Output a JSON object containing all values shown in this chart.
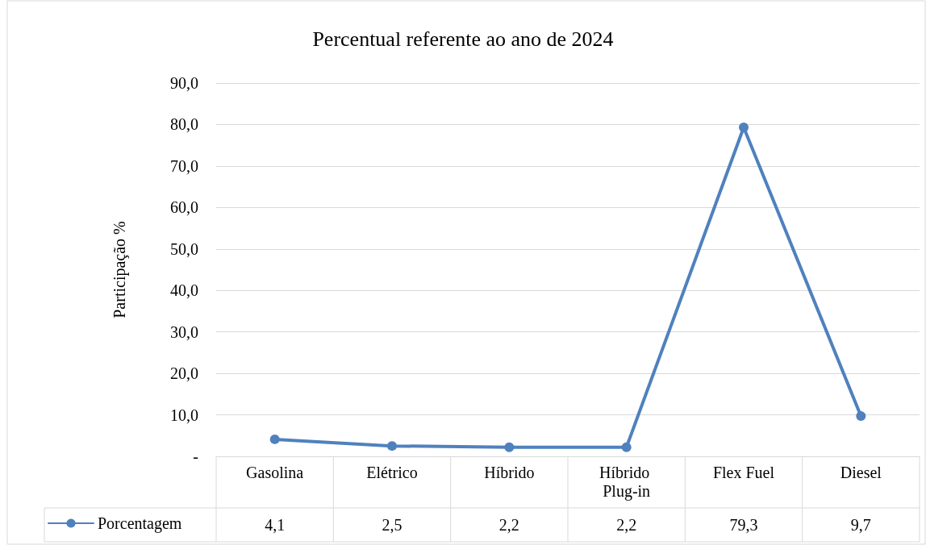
{
  "chart_data": {
    "type": "line",
    "title": "Percentual referente ao ano de 2024",
    "ylabel": "Participação %",
    "categories": [
      "Gasolina",
      "Elétrico",
      "Híbrido",
      "Híbrido Plug-in",
      "Flex Fuel",
      "Diesel"
    ],
    "series": [
      {
        "name": "Porcentagem",
        "color": "#4f81bd",
        "values": [
          4.1,
          2.5,
          2.2,
          2.2,
          79.3,
          9.7
        ],
        "value_labels": [
          "4,1",
          "2,5",
          "2,2",
          "2,2",
          "79,3",
          "9,7"
        ]
      }
    ],
    "ylim": [
      0,
      90
    ],
    "yticks": [
      {
        "value": 0,
        "label": "-"
      },
      {
        "value": 10,
        "label": "10,0"
      },
      {
        "value": 20,
        "label": "20,0"
      },
      {
        "value": 30,
        "label": "30,0"
      },
      {
        "value": 40,
        "label": "40,0"
      },
      {
        "value": 50,
        "label": "50,0"
      },
      {
        "value": 60,
        "label": "60,0"
      },
      {
        "value": 70,
        "label": "70,0"
      },
      {
        "value": 80,
        "label": "80,0"
      },
      {
        "value": 90,
        "label": "90,0"
      }
    ],
    "grid": "y",
    "legend": "bottom left",
    "marker": "circle"
  }
}
